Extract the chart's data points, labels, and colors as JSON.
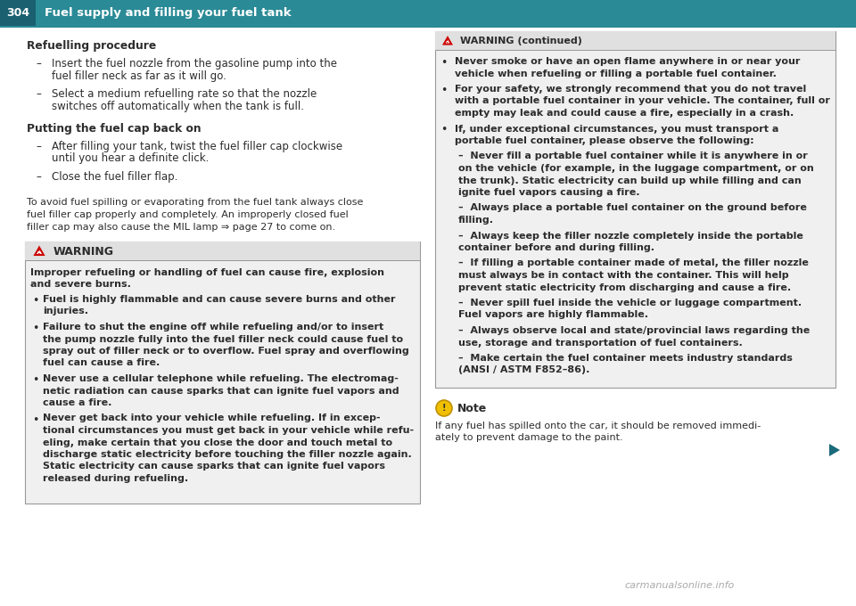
{
  "page_number": "304",
  "header_title": "Fuel supply and filling your fuel tank",
  "header_bg": "#2a8a96",
  "header_text_color": "#ffffff",
  "divider_color": "#2a8a96",
  "bg_color": "#ffffff",
  "body_text_color": "#2c2c2c",
  "section1_title": "Refuelling procedure",
  "section1_bullets": [
    [
      "Insert the fuel nozzle from the gasoline pump into the",
      "fuel filler neck as far as it will go."
    ],
    [
      "Select a medium refuelling rate so that the nozzle",
      "switches off automatically when the tank is full."
    ]
  ],
  "section2_title": "Putting the fuel cap back on",
  "section2_bullets": [
    [
      "After filling your tank, twist the fuel filler cap clockwise",
      "until you hear a definite click."
    ],
    [
      "Close the fuel filler flap."
    ]
  ],
  "italic_note": [
    "To avoid fuel spilling or evaporating from the fuel tank always close",
    "fuel filler cap properly and completely. An improperly closed fuel",
    "filler cap may also cause the MIL lamp ⇒ page 27 to come on."
  ],
  "warning_box_bg": "#f0f0f0",
  "warning_box_border": "#999999",
  "warning_header_bg": "#e0e0e0",
  "warning_title": "WARNING",
  "warning_intro": [
    "Improper refueling or handling of fuel can cause fire, explosion",
    "and severe burns."
  ],
  "warning_bullets": [
    [
      "Fuel is highly flammable and can cause severe burns and other",
      "injuries."
    ],
    [
      "Failure to shut the engine off while refueling and/or to insert",
      "the pump nozzle fully into the fuel filler neck could cause fuel to",
      "spray out of filler neck or to overflow. Fuel spray and overflowing",
      "fuel can cause a fire."
    ],
    [
      "Never use a cellular telephone while refueling. The electromag-",
      "netic radiation can cause sparks that can ignite fuel vapors and",
      "cause a fire."
    ],
    [
      "Never get back into your vehicle while refueling. If in excep-",
      "tional circumstances you must get back in your vehicle while refu-",
      "eling, make certain that you close the door and touch metal to",
      "discharge static electricity before touching the filler nozzle again.",
      "Static electricity can cause sparks that can ignite fuel vapors",
      "released during refueling."
    ]
  ],
  "right_warning_title": "WARNING (continued)",
  "right_warning_bg": "#f0f0f0",
  "right_warning_border": "#999999",
  "right_warning_header_bg": "#e0e0e0",
  "right_warning_bullets": [
    [
      "Never smoke or have an open flame anywhere in or near your",
      "vehicle when refueling or filling a portable fuel container."
    ],
    [
      "For your safety, we strongly recommend that you do not travel",
      "with a portable fuel container in your vehicle. The container, full or",
      "empty may leak and could cause a fire, especially in a crash."
    ],
    [
      "If, under exceptional circumstances, you must transport a",
      "portable fuel container, please observe the following:"
    ]
  ],
  "right_warning_sub_bullets": [
    [
      "–  Never fill a portable fuel container while it is anywhere in or",
      "on the vehicle (for example, in the luggage compartment, or on",
      "the trunk). Static electricity can build up while filling and can",
      "ignite fuel vapors causing a fire."
    ],
    [
      "–  Always place a portable fuel container on the ground before",
      "filling."
    ],
    [
      "–  Always keep the filler nozzle completely inside the portable",
      "container before and during filling."
    ],
    [
      "–  If filling a portable container made of metal, the filler nozzle",
      "must always be in contact with the container. This will help",
      "prevent static electricity from discharging and cause a fire."
    ],
    [
      "–  Never spill fuel inside the vehicle or luggage compartment.",
      "Fuel vapors are highly flammable."
    ],
    [
      "–  Always observe local and state/provincial laws regarding the",
      "use, storage and transportation of fuel containers."
    ],
    [
      "–  Make certain the fuel container meets industry standards",
      "(ANSI / ASTM F852–86)."
    ]
  ],
  "note_icon_color": "#f0c000",
  "note_icon_border": "#c09000",
  "note_title": "Note",
  "note_text": [
    "If any fuel has spilled onto the car, it should be removed immedi-",
    "ately to prevent damage to the paint."
  ],
  "arrow_color": "#1a6a7a",
  "footer_url": "carmanualsonline.info"
}
